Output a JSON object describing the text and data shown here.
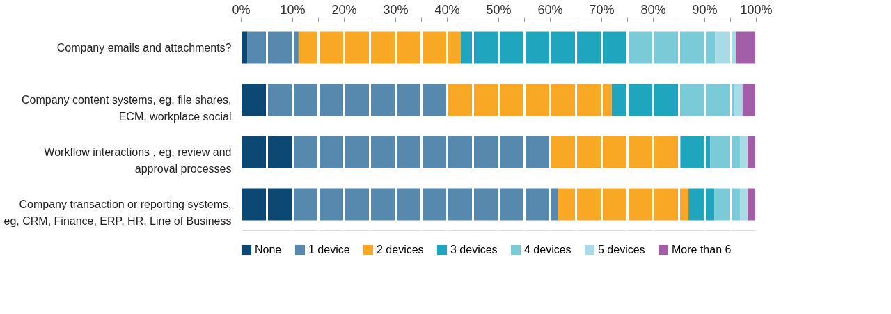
{
  "chart_data": {
    "type": "bar",
    "orientation": "horizontal",
    "stacked": true,
    "categories": [
      "Company emails and attachments?",
      "Company content systems, eg, file shares, ECM, workplace social",
      "Workflow interactions , eg, review and approval processes",
      "Company transaction or reporting systems, eg, CRM, Finance, ERP, HR, Line of Business"
    ],
    "series": [
      {
        "name": "None",
        "color": "#0b4874",
        "values": [
          1.3,
          5,
          10,
          10
        ]
      },
      {
        "name": "1 device",
        "color": "#5788ad",
        "values": [
          9.9,
          35,
          50,
          51.6
        ]
      },
      {
        "name": "2 devices",
        "color": "#f9a825",
        "values": [
          31.5,
          32,
          25.4,
          25.3
        ]
      },
      {
        "name": "3 devices",
        "color": "#1fa5bd",
        "values": [
          32.6,
          13.2,
          5.7,
          5.0
        ]
      },
      {
        "name": "4 devices",
        "color": "#7acad8",
        "values": [
          16.8,
          10.7,
          5.8,
          5.0
        ]
      },
      {
        "name": "5 devices",
        "color": "#a8dbe6",
        "values": [
          4.1,
          1.5,
          1.5,
          1.5
        ]
      },
      {
        "name": "More than 6",
        "color": "#a25ea6",
        "values": [
          3.8,
          2.6,
          1.6,
          1.6
        ]
      }
    ],
    "xlim": [
      0,
      100
    ],
    "xticks": [
      {
        "value": 0,
        "label": "0%"
      },
      {
        "value": 5,
        "label": null
      },
      {
        "value": 10,
        "label": "10%"
      },
      {
        "value": 15,
        "label": null
      },
      {
        "value": 20,
        "label": "20%"
      },
      {
        "value": 25,
        "label": null
      },
      {
        "value": 30,
        "label": "30%"
      },
      {
        "value": 35,
        "label": null
      },
      {
        "value": 40,
        "label": "40%"
      },
      {
        "value": 45,
        "label": null
      },
      {
        "value": 50,
        "label": "50%"
      },
      {
        "value": 55,
        "label": null
      },
      {
        "value": 60,
        "label": "60%"
      },
      {
        "value": 65,
        "label": null
      },
      {
        "value": 70,
        "label": "70%"
      },
      {
        "value": 75,
        "label": null
      },
      {
        "value": 80,
        "label": "80%"
      },
      {
        "value": 85,
        "label": null
      },
      {
        "value": 90,
        "label": "90%"
      },
      {
        "value": 95,
        "label": null
      },
      {
        "value": 100,
        "label": "100%"
      }
    ],
    "grid": "x",
    "legend": "bottom"
  }
}
